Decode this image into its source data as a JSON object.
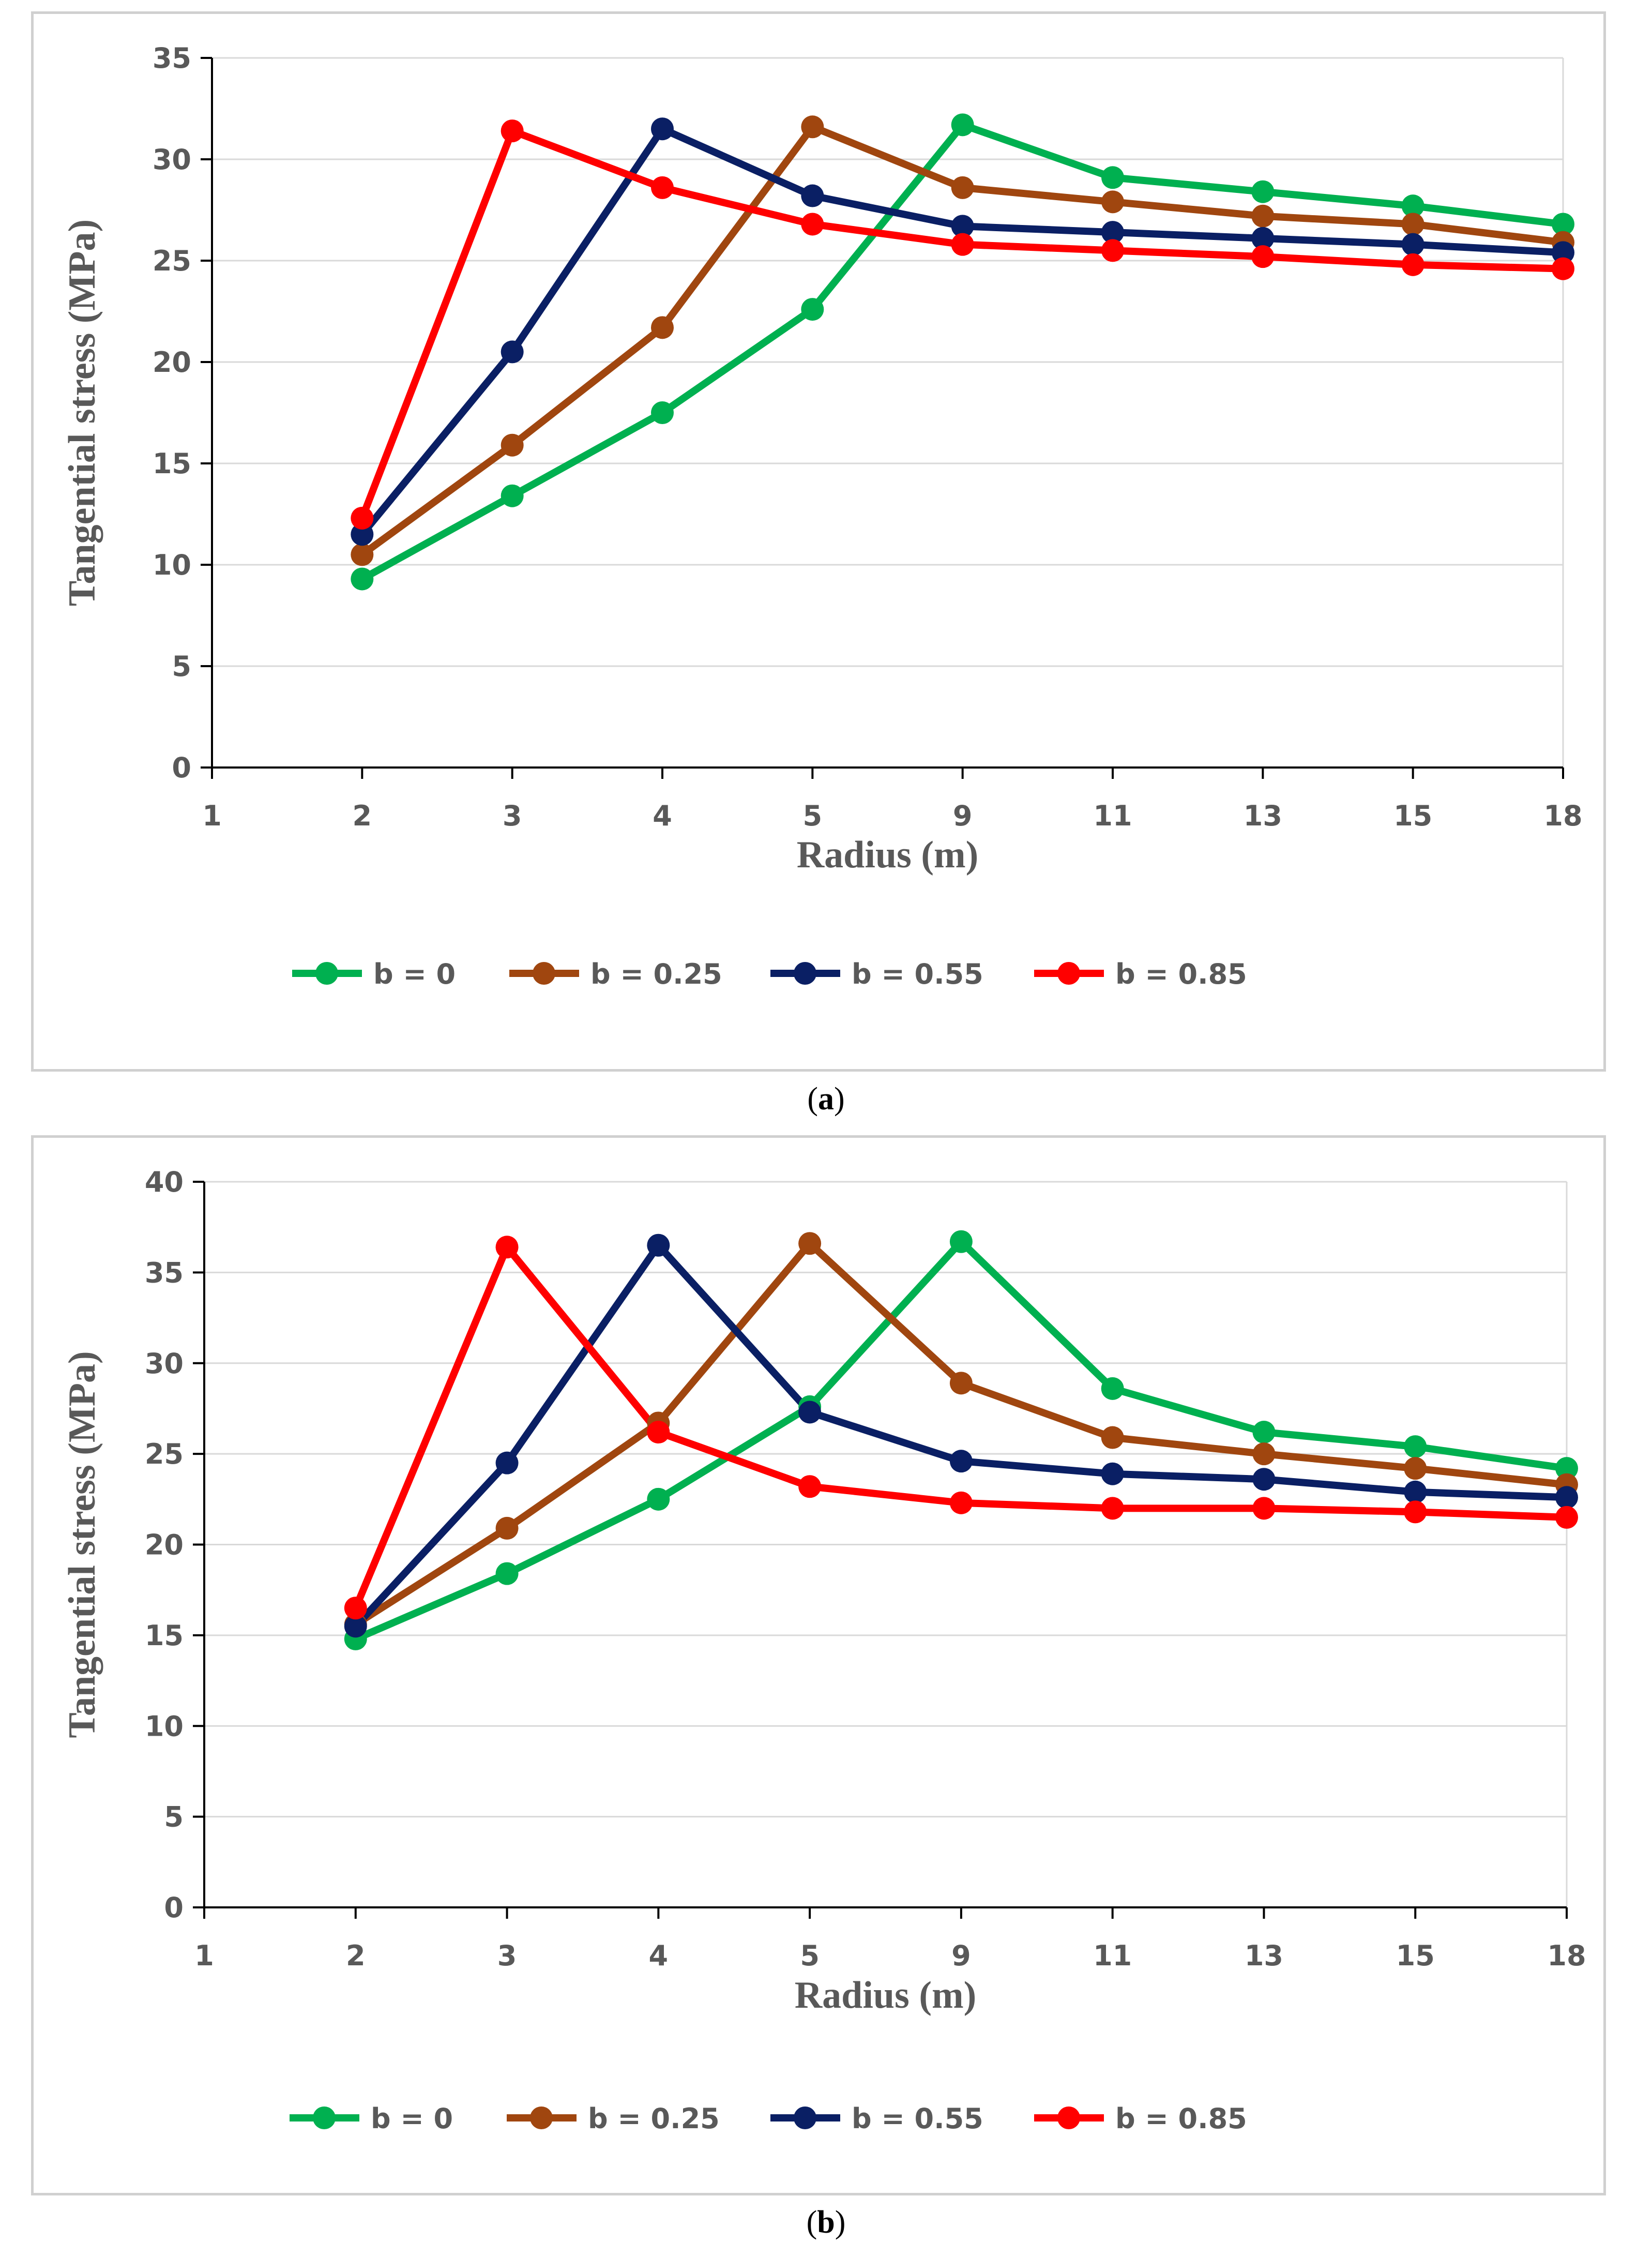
{
  "figure": {
    "captions": [
      {
        "open": "(",
        "letter": "a",
        "close": ")"
      },
      {
        "open": "(",
        "letter": "b",
        "close": ")"
      }
    ]
  },
  "chart_data": [
    {
      "type": "line",
      "panel": "a",
      "categories": [
        "1",
        "2",
        "3",
        "4",
        "5",
        "9",
        "11",
        "13",
        "15",
        "18"
      ],
      "xlabel": "Radius (m)",
      "ylabel": "Tangential stress (MPa)",
      "ylim": [
        0,
        35
      ],
      "yticks": [
        0,
        5,
        10,
        15,
        20,
        25,
        30,
        35
      ],
      "grid": "horizontal",
      "legend": "bottom",
      "series": [
        {
          "name": "b = 0",
          "color": "#00b050",
          "values": [
            null,
            9.3,
            13.4,
            17.5,
            22.6,
            31.7,
            29.1,
            28.4,
            27.7,
            26.8
          ]
        },
        {
          "name": "b = 0.25",
          "color": "#a0460f",
          "values": [
            null,
            10.5,
            15.9,
            21.7,
            31.6,
            28.6,
            27.9,
            27.2,
            26.8,
            25.9
          ]
        },
        {
          "name": "b = 0.55",
          "color": "#0a1f64",
          "values": [
            null,
            11.5,
            20.5,
            31.5,
            28.2,
            26.7,
            26.4,
            26.1,
            25.8,
            25.4
          ]
        },
        {
          "name": "b = 0.85",
          "color": "#ff0000",
          "values": [
            null,
            12.3,
            31.4,
            28.6,
            26.8,
            25.8,
            25.5,
            25.2,
            24.8,
            24.6
          ]
        }
      ]
    },
    {
      "type": "line",
      "panel": "b",
      "categories": [
        "1",
        "2",
        "3",
        "4",
        "5",
        "9",
        "11",
        "13",
        "15",
        "18"
      ],
      "xlabel": "Radius (m)",
      "ylabel": "Tangential stress (MPa)",
      "ylim": [
        0,
        40
      ],
      "yticks": [
        0,
        5,
        10,
        15,
        20,
        25,
        30,
        35,
        40
      ],
      "grid": "horizontal",
      "legend": "bottom",
      "series": [
        {
          "name": "b = 0",
          "color": "#00b050",
          "values": [
            null,
            14.8,
            18.4,
            22.5,
            27.6,
            36.7,
            28.6,
            26.2,
            25.4,
            24.2
          ]
        },
        {
          "name": "b = 0.25",
          "color": "#a0460f",
          "values": [
            null,
            15.6,
            20.9,
            26.7,
            36.6,
            28.9,
            25.9,
            25.0,
            24.2,
            23.3
          ]
        },
        {
          "name": "b = 0.55",
          "color": "#0a1f64",
          "values": [
            null,
            15.5,
            24.5,
            36.5,
            27.3,
            24.6,
            23.9,
            23.6,
            22.9,
            22.6
          ]
        },
        {
          "name": "b = 0.85",
          "color": "#ff0000",
          "values": [
            null,
            16.5,
            36.4,
            26.2,
            23.2,
            22.3,
            22.0,
            22.0,
            21.8,
            21.5
          ]
        }
      ]
    }
  ]
}
